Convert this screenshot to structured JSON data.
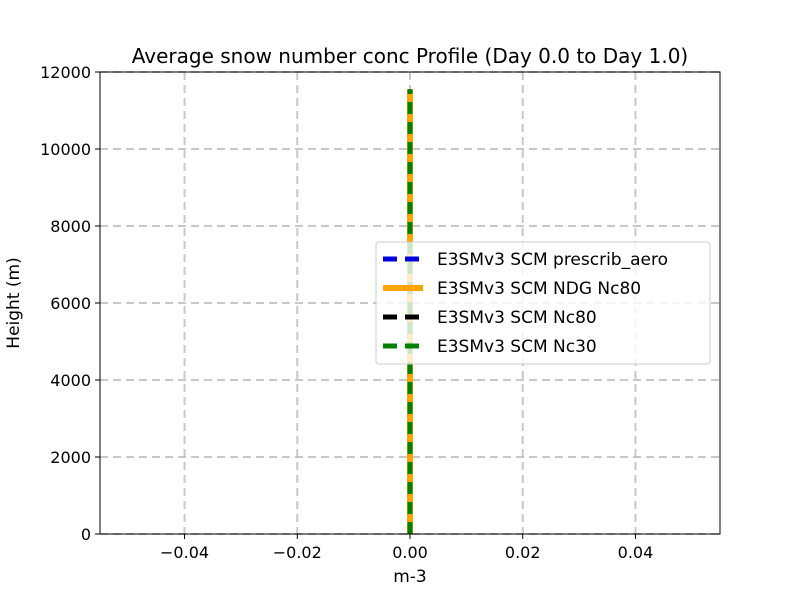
{
  "chart_data": {
    "type": "line",
    "title": "Average snow number conc Profile (Day 0.0 to Day 1.0)",
    "xlabel": "m-3",
    "ylabel": "Height (m)",
    "xlim": [
      -0.055,
      0.055
    ],
    "ylim": [
      0,
      12000
    ],
    "xticks": [
      -0.04,
      -0.02,
      0.0,
      0.02,
      0.04
    ],
    "xtick_labels": [
      "−0.04",
      "−0.02",
      "0.00",
      "0.02",
      "0.04"
    ],
    "yticks": [
      0,
      2000,
      4000,
      6000,
      8000,
      10000,
      12000
    ],
    "ytick_labels": [
      "0",
      "2000",
      "4000",
      "6000",
      "8000",
      "10000",
      "12000"
    ],
    "grid": true,
    "legend_position": "center-right",
    "series": [
      {
        "name": "E3SMv3 SCM prescrib_aero",
        "color": "#0000dd",
        "style": "dashed",
        "x": [
          0,
          0
        ],
        "y": [
          0,
          11550
        ]
      },
      {
        "name": "E3SMv3 SCM NDG Nc80",
        "color": "#ffa500",
        "style": "solid",
        "x": [
          0,
          0
        ],
        "y": [
          0,
          11550
        ]
      },
      {
        "name": "E3SMv3 SCM Nc80",
        "color": "#000000",
        "style": "dashed",
        "x": [
          0,
          0
        ],
        "y": [
          0,
          11550
        ]
      },
      {
        "name": "E3SMv3 SCM Nc30",
        "color": "#008000",
        "style": "dashed",
        "x": [
          0,
          0
        ],
        "y": [
          0,
          11550
        ]
      }
    ]
  }
}
